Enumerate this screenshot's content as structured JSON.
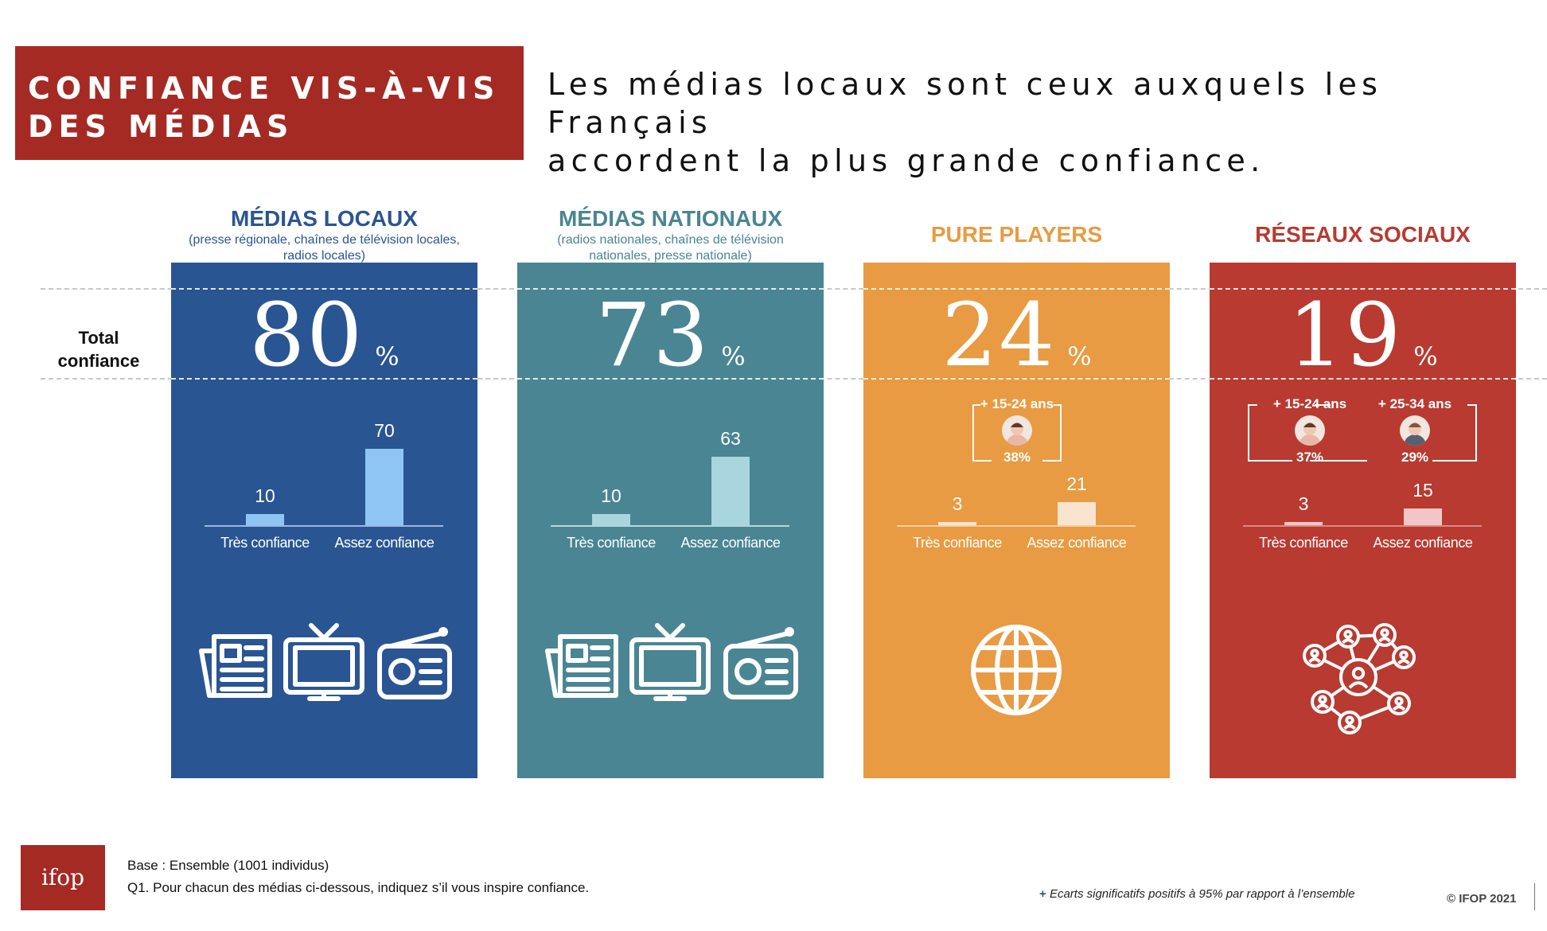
{
  "title": "CONFIANCE VIS-À-VIS\nDES MÉDIAS",
  "headline": "Les médias locaux sont ceux auxquels les Français\naccordent la plus grande confiance.",
  "total_label": "Total\nconfiance",
  "percent_sign": "%",
  "chart_data": {
    "type": "bar",
    "categories": [
      "Très confiance",
      "Assez confiance"
    ],
    "ylim": [
      0,
      100
    ],
    "panels": [
      {
        "name": "MÉDIAS LOCAUX",
        "subtitle": "(presse régionale, chaînes de télévision locales,\nradios locales)",
        "total": "80",
        "values": [
          10,
          70
        ],
        "color": "#2a5593",
        "bar_colors": [
          "#8ec5f5",
          "#8ec5f5"
        ],
        "axis_color": "#9db8dc",
        "title_color": "#2a5593",
        "icons": [
          "newspaper-icon",
          "tv-icon",
          "radio-icon"
        ]
      },
      {
        "name": "MÉDIAS NATIONAUX",
        "subtitle": "(radios nationales, chaînes de télévision\nnationales, presse nationale)",
        "total": "73",
        "values": [
          10,
          63
        ],
        "color": "#4a8593",
        "bar_colors": [
          "#a8d5de",
          "#a8d5de"
        ],
        "axis_color": "#b8d6dc",
        "title_color": "#4a8593",
        "icons": [
          "newspaper-icon",
          "tv-icon",
          "radio-icon"
        ]
      },
      {
        "name": "PURE PLAYERS",
        "subtitle": "",
        "total": "24",
        "values": [
          3,
          21
        ],
        "color": "#e89b42",
        "bar_colors": [
          "#f8e4cf",
          "#f8e4cf"
        ],
        "axis_color": "#f3cfa5",
        "title_color": "#e89b42",
        "icons": [
          "globe-icon"
        ],
        "segments": [
          {
            "label": "+ 15-24 ans",
            "value": "38%"
          }
        ]
      },
      {
        "name": "RÉSEAUX SOCIAUX",
        "subtitle": "",
        "total": "19",
        "values": [
          3,
          15
        ],
        "color": "#b83a31",
        "bar_colors": [
          "#f2c6c6",
          "#f2c6c6"
        ],
        "axis_color": "#d98b85",
        "title_color": "#b83a31",
        "icons": [
          "social-network-icon"
        ],
        "segments": [
          {
            "label": "+ 15-24 ans",
            "value": "37%"
          },
          {
            "label": "+ 25-34 ans",
            "value": "29%"
          }
        ]
      }
    ]
  },
  "footer": {
    "logo": "ifop",
    "base": "Base : Ensemble (1001 individus)",
    "question": "Q1. Pour chacun des médias ci-dessous, indiquez s’il vous inspire confiance.",
    "note_plus": "+",
    "note": "Ecarts significatifs positifs à 95% par rapport à l’ensemble",
    "copyright": "© IFOP 2021"
  }
}
